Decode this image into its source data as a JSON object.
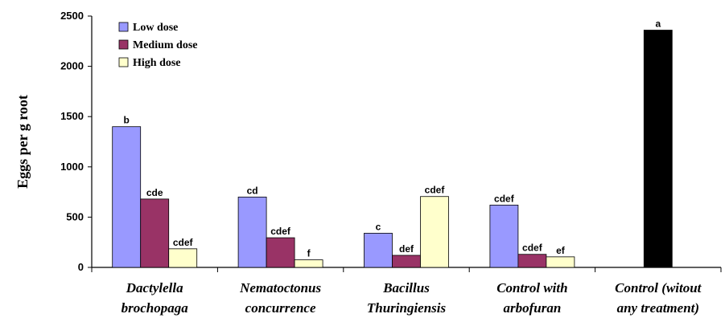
{
  "chart_data": {
    "type": "bar",
    "ylabel": "Eggs per g root",
    "xlabel": "",
    "ylim": [
      0,
      2500
    ],
    "ytick_step": 500,
    "grid": false,
    "legend_position": "top-left",
    "categories": [
      [
        "Dactylella",
        "brochopaga"
      ],
      [
        "Nematoctonus",
        "concurrence"
      ],
      [
        "Bacillus",
        "Thuringiensis"
      ],
      [
        "Control with",
        "arbofuran"
      ],
      [
        "Control (witout",
        "any treatment)"
      ]
    ],
    "series": [
      {
        "name": "Low dose",
        "color": "#9999ff",
        "values": [
          1400,
          700,
          340,
          620,
          null
        ],
        "labels": [
          "b",
          "cd",
          "c",
          "cdef",
          null
        ]
      },
      {
        "name": "Medium dose",
        "color": "#993366",
        "values": [
          680,
          295,
          120,
          130,
          null
        ],
        "labels": [
          "cde",
          "cdef",
          "def",
          "cdef",
          null
        ]
      },
      {
        "name": "High dose",
        "color": "#ffffcc",
        "values": [
          185,
          75,
          705,
          105,
          null
        ],
        "labels": [
          "cdef",
          "f",
          "cdef",
          "ef",
          null
        ]
      },
      {
        "name": "",
        "color": "#000000",
        "values": [
          null,
          null,
          null,
          null,
          2360
        ],
        "labels": [
          null,
          null,
          null,
          null,
          "a"
        ]
      }
    ]
  }
}
